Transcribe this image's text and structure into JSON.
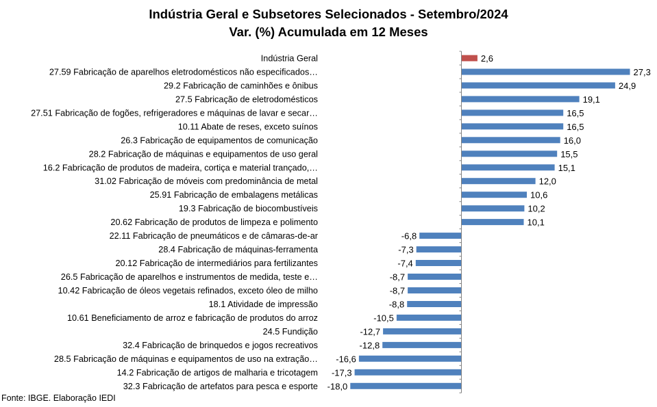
{
  "chart_data": {
    "type": "bar",
    "orientation": "horizontal",
    "title": "Indústria Geral e Subsetores Selecionados - Setembro/2024",
    "subtitle": "Var. (%) Acumulada em 12 Meses",
    "source": "Fonte: IBGE. Elaboração IEDI",
    "xlim": [
      -18.0,
      27.3
    ],
    "grid": false,
    "legend": "none",
    "colors": {
      "highlight": "#C0504D",
      "default": "#4F81BD",
      "baseline": "#808080"
    },
    "categories": [
      "Indústria Geral",
      "27.59 Fabricação de aparelhos eletrodomésticos não especificados…",
      "29.2 Fabricação de caminhões e ônibus",
      "27.5 Fabricação de eletrodomésticos",
      "27.51 Fabricação de fogões, refrigeradores e máquinas de lavar e secar…",
      "10.11 Abate de reses, exceto suínos",
      "26.3 Fabricação de equipamentos de comunicação",
      "28.2 Fabricação de máquinas e equipamentos de uso geral",
      "16.2 Fabricação de produtos de madeira, cortiça e material trançado,…",
      "31.02 Fabricação de móveis com predominância de metal",
      "25.91 Fabricação de embalagens metálicas",
      "19.3 Fabricação de biocombustíveis",
      "20.62 Fabricação de produtos de limpeza e polimento",
      "22.11 Fabricação de pneumáticos e de câmaras-de-ar",
      "28.4 Fabricação de máquinas-ferramenta",
      "20.12 Fabricação de intermediários para fertilizantes",
      "26.5 Fabricação de aparelhos e instrumentos de medida, teste e…",
      "10.42 Fabricação de óleos vegetais refinados, exceto óleo de milho",
      "18.1 Atividade de impressão",
      "10.61 Beneficiamento de arroz e fabricação de produtos do arroz",
      "24.5 Fundição",
      "32.4 Fabricação de brinquedos e jogos recreativos",
      "28.5 Fabricação de máquinas e equipamentos de uso na extração…",
      "14.2 Fabricação de artigos de malharia e tricotagem",
      "32.3 Fabricação de artefatos para pesca e esporte"
    ],
    "values": [
      2.6,
      27.3,
      24.9,
      19.1,
      16.5,
      16.5,
      16.0,
      15.5,
      15.1,
      12.0,
      10.6,
      10.2,
      10.1,
      -6.8,
      -7.3,
      -7.4,
      -8.7,
      -8.7,
      -8.8,
      -10.5,
      -12.7,
      -12.8,
      -16.6,
      -17.3,
      -18.0
    ],
    "value_labels": [
      "2,6",
      "27,3",
      "24,9",
      "19,1",
      "16,5",
      "16,5",
      "16,0",
      "15,5",
      "15,1",
      "12,0",
      "10,6",
      "10,2",
      "10,1",
      "-6,8",
      "-7,3",
      "-7,4",
      "-8,7",
      "-8,7",
      "-8,8",
      "-10,5",
      "-12,7",
      "-12,8",
      "-16,6",
      "-17,3",
      "-18,0"
    ]
  }
}
